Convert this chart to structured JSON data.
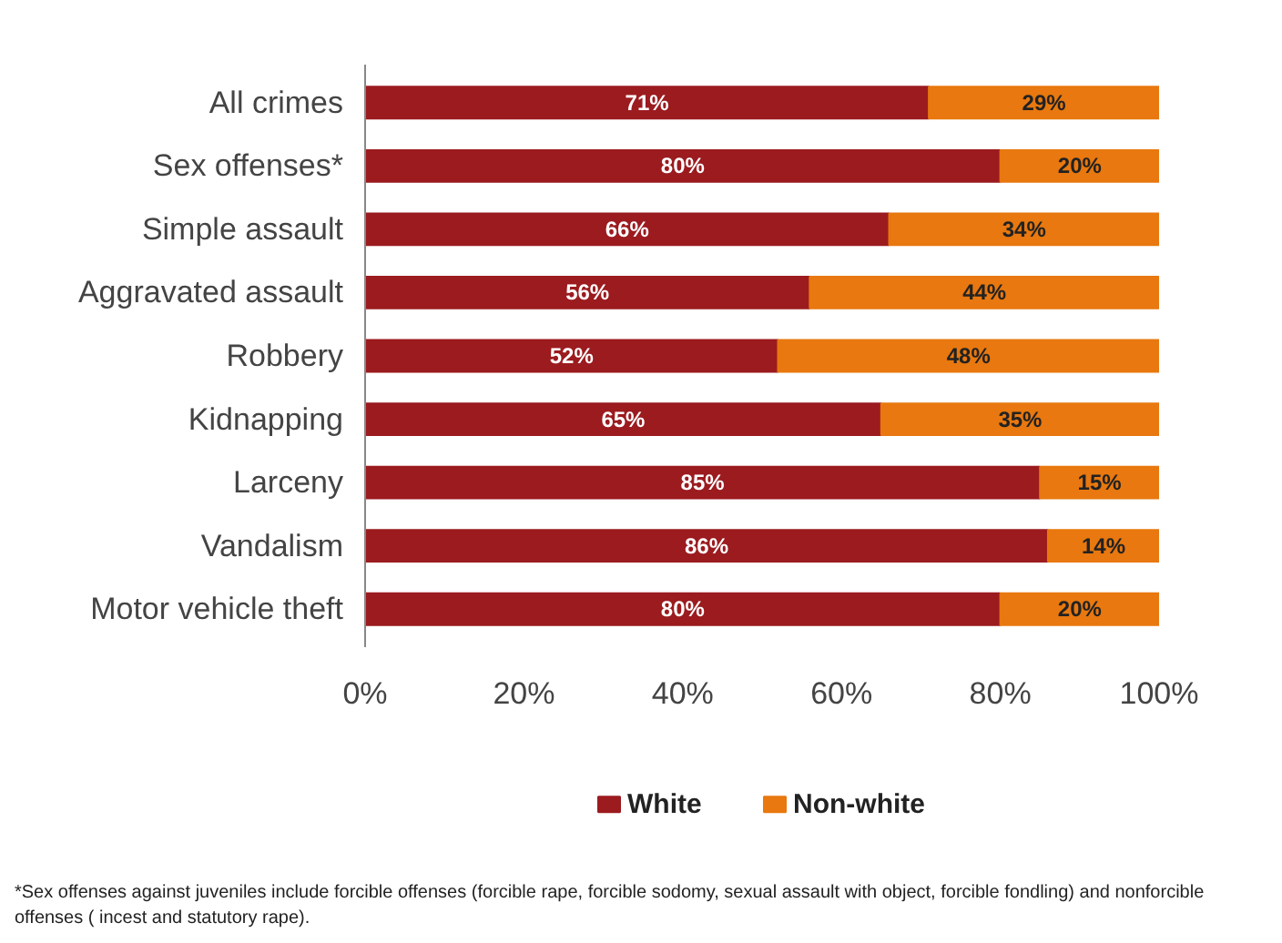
{
  "chart_data": {
    "type": "bar",
    "orientation": "horizontal",
    "stacked": true,
    "categories": [
      "All crimes",
      "Sex offenses*",
      "Simple assault",
      "Aggravated assault",
      "Robbery",
      "Kidnapping",
      "Larceny",
      "Vandalism",
      "Motor vehicle theft"
    ],
    "series": [
      {
        "name": "White",
        "color": "#9b1b1f",
        "values": [
          71,
          80,
          66,
          56,
          52,
          65,
          85,
          86,
          80
        ],
        "value_labels": [
          "71%",
          "80%",
          "66%",
          "56%",
          "52%",
          "65%",
          "85%",
          "86%",
          "80%"
        ]
      },
      {
        "name": "Non-white",
        "color": "#e8780f",
        "values": [
          29,
          20,
          34,
          44,
          48,
          35,
          15,
          14,
          20
        ],
        "value_labels": [
          "29%",
          "20%",
          "34%",
          "44%",
          "48%",
          "35%",
          "15%",
          "14%",
          "20%"
        ]
      }
    ],
    "xlim": [
      0,
      100
    ],
    "xticks": [
      {
        "value": 0,
        "label": "0%"
      },
      {
        "value": 20,
        "label": "20%"
      },
      {
        "value": 40,
        "label": "40%"
      },
      {
        "value": 60,
        "label": "60%"
      },
      {
        "value": 80,
        "label": "80%"
      },
      {
        "value": 100,
        "label": "100%"
      }
    ],
    "grid": false,
    "legend": "bottom",
    "annotations": [
      "*Sex offenses against juveniles include forcible offenses (forcible rape, forcible sodomy, sexual assault with object, forcible fondling) and nonforcible offenses ( incest and statutory rape)."
    ]
  }
}
